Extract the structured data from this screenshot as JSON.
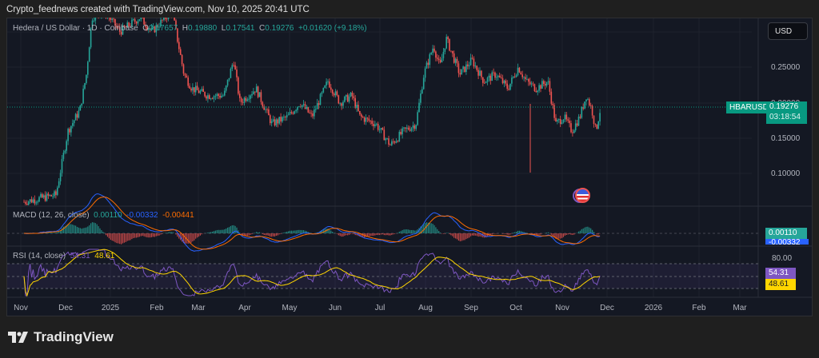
{
  "caption": "Crypto_feednews created with TradingView.com, Nov 10, 2025 20:41 UTC",
  "header": {
    "symbol_desc": "Hedera / US Dollar · 1D · Coinbase",
    "o_label": "O",
    "o_value": "0.17657",
    "h_label": "H",
    "h_value": "0.19880",
    "l_label": "L",
    "l_value": "0.17541",
    "c_label": "C",
    "c_value": "0.19276",
    "change": "+0.01620 (+9.18%)"
  },
  "currency_button": "USD",
  "price_axis": [
    "0.25000",
    "0.20000",
    "0.15000",
    "0.10000"
  ],
  "symbol_tag": "HBARUSD",
  "last_price": "0.19276",
  "countdown": "03:18:54",
  "macd": {
    "label": "MACD (12, 26, close)",
    "hist": "0.00110",
    "macd": "-0.00332",
    "signal": "-0.00441",
    "tag_hist": "0.00110",
    "tag_macd": "-0.00332"
  },
  "rsi": {
    "label": "RSI (14, close)",
    "rsi": "54.31",
    "ma": "48.61",
    "axis": "80.00",
    "tag_rsi": "54.31",
    "tag_ma": "48.61"
  },
  "time_axis": [
    "Nov",
    "Dec",
    "2025",
    "Feb",
    "Mar",
    "Apr",
    "May",
    "Jun",
    "Jul",
    "Aug",
    "Sep",
    "Oct",
    "Nov",
    "Dec",
    "2026",
    "Feb",
    "Mar"
  ],
  "brand": "TradingView",
  "colors": {
    "up": "#26a69a",
    "down": "#ef5350",
    "macd": "#2962ff",
    "signal": "#ff6d00",
    "rsi": "#7e57c2",
    "rsi_ma": "#ffd600"
  },
  "chart_data": {
    "type": "candlestick",
    "title": "Hedera / US Dollar · 1D · Coinbase",
    "xlabel": "",
    "ylabel": "USD",
    "ylim": [
      0.06,
      0.31
    ],
    "x": [
      "2024-11",
      "2024-12",
      "2025-01",
      "2025-02",
      "2025-03",
      "2025-04",
      "2025-05",
      "2025-06",
      "2025-07",
      "2025-08",
      "2025-09",
      "2025-10",
      "2025-11"
    ],
    "close_path": [
      [
        0,
        0.06
      ],
      [
        40,
        0.07
      ],
      [
        55,
        0.16
      ],
      [
        70,
        0.19
      ],
      [
        78,
        0.24
      ],
      [
        85,
        0.32
      ],
      [
        100,
        0.33
      ],
      [
        120,
        0.3
      ],
      [
        145,
        0.32
      ],
      [
        160,
        0.3
      ],
      [
        185,
        0.33
      ],
      [
        200,
        0.24
      ],
      [
        210,
        0.22
      ],
      [
        230,
        0.21
      ],
      [
        250,
        0.21
      ],
      [
        262,
        0.26
      ],
      [
        270,
        0.2
      ],
      [
        290,
        0.22
      ],
      [
        310,
        0.17
      ],
      [
        330,
        0.18
      ],
      [
        345,
        0.2
      ],
      [
        360,
        0.18
      ],
      [
        380,
        0.23
      ],
      [
        395,
        0.2
      ],
      [
        410,
        0.21
      ],
      [
        420,
        0.18
      ],
      [
        440,
        0.17
      ],
      [
        458,
        0.14
      ],
      [
        475,
        0.16
      ],
      [
        490,
        0.17
      ],
      [
        500,
        0.24
      ],
      [
        512,
        0.28
      ],
      [
        520,
        0.25
      ],
      [
        528,
        0.29
      ],
      [
        545,
        0.24
      ],
      [
        560,
        0.26
      ],
      [
        575,
        0.23
      ],
      [
        590,
        0.24
      ],
      [
        605,
        0.22
      ],
      [
        618,
        0.25
      ],
      [
        628,
        0.23
      ],
      [
        640,
        0.22
      ],
      [
        655,
        0.23
      ],
      [
        665,
        0.17
      ],
      [
        675,
        0.18
      ],
      [
        685,
        0.16
      ],
      [
        695,
        0.18
      ],
      [
        703,
        0.21
      ],
      [
        710,
        0.19
      ],
      [
        715,
        0.16
      ],
      [
        721,
        0.193
      ]
    ],
    "last": {
      "open": 0.17657,
      "high": 0.1988,
      "low": 0.17541,
      "close": 0.19276,
      "change": 0.0162,
      "change_pct": 9.18
    },
    "indicators": {
      "macd": {
        "params": [
          12,
          26
        ],
        "histogram": 0.0011,
        "macd": -0.00332,
        "signal": -0.00441
      },
      "rsi": {
        "period": 14,
        "value": 54.31,
        "ma": 48.61,
        "levels": [
          70,
          50,
          30
        ]
      }
    }
  }
}
